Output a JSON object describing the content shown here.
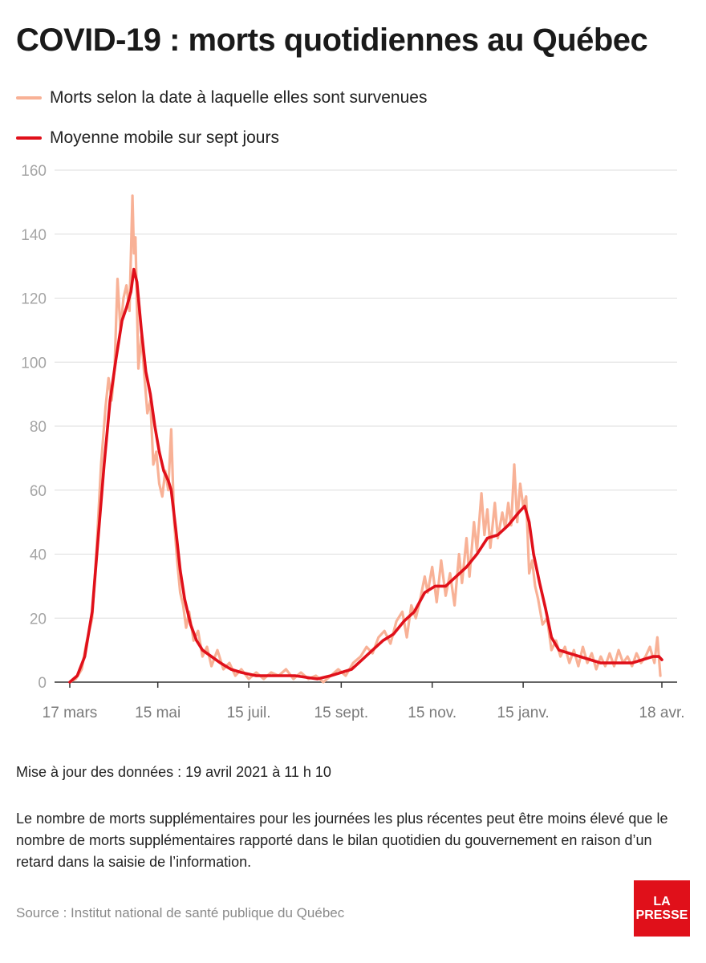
{
  "title": "COVID-19 : morts quotidiennes au Québec",
  "colors": {
    "raw": "#f8b196",
    "avg": "#e0101a",
    "grid": "#dddddd",
    "tick_text": "#a5a5a5"
  },
  "legend": [
    {
      "label": "Morts selon la date à laquelle elles sont survenues"
    },
    {
      "label": "Moyenne mobile sur sept jours"
    }
  ],
  "chart_data": {
    "type": "line",
    "title": "COVID-19 : morts quotidiennes au Québec",
    "ylim": [
      0,
      160
    ],
    "yticks": [
      0,
      20,
      40,
      60,
      80,
      100,
      120,
      140,
      160
    ],
    "xlim": [
      "2020-03-17",
      "2021-04-18"
    ],
    "x_ticks": [
      {
        "date": "2020-03-17",
        "label": "17 mars"
      },
      {
        "date": "2020-05-15",
        "label": "15 mai"
      },
      {
        "date": "2020-07-15",
        "label": "15 juil."
      },
      {
        "date": "2020-09-15",
        "label": "15 sept."
      },
      {
        "date": "2020-11-15",
        "label": "15 nov."
      },
      {
        "date": "2021-01-15",
        "label": "15 janv."
      },
      {
        "date": "2021-04-18",
        "label": "18 avr."
      }
    ],
    "grid": true,
    "series": [
      {
        "name": "Morts selon la date à laquelle elles sont survenues",
        "points": [
          [
            "2020-03-17",
            0
          ],
          [
            "2020-03-21",
            1
          ],
          [
            "2020-03-25",
            4
          ],
          [
            "2020-03-28",
            12
          ],
          [
            "2020-04-01",
            20
          ],
          [
            "2020-04-04",
            42
          ],
          [
            "2020-04-07",
            68
          ],
          [
            "2020-04-10",
            86
          ],
          [
            "2020-04-12",
            95
          ],
          [
            "2020-04-14",
            88
          ],
          [
            "2020-04-16",
            98
          ],
          [
            "2020-04-18",
            126
          ],
          [
            "2020-04-20",
            110
          ],
          [
            "2020-04-22",
            120
          ],
          [
            "2020-04-24",
            124
          ],
          [
            "2020-04-26",
            116
          ],
          [
            "2020-04-28",
            152
          ],
          [
            "2020-04-29",
            134
          ],
          [
            "2020-04-30",
            139
          ],
          [
            "2020-05-02",
            98
          ],
          [
            "2020-05-04",
            108
          ],
          [
            "2020-05-06",
            96
          ],
          [
            "2020-05-08",
            84
          ],
          [
            "2020-05-10",
            88
          ],
          [
            "2020-05-12",
            68
          ],
          [
            "2020-05-14",
            72
          ],
          [
            "2020-05-16",
            62
          ],
          [
            "2020-05-18",
            58
          ],
          [
            "2020-05-20",
            66
          ],
          [
            "2020-05-22",
            60
          ],
          [
            "2020-05-24",
            79
          ],
          [
            "2020-05-26",
            50
          ],
          [
            "2020-05-28",
            38
          ],
          [
            "2020-05-30",
            28
          ],
          [
            "2020-06-01",
            24
          ],
          [
            "2020-06-03",
            17
          ],
          [
            "2020-06-05",
            22
          ],
          [
            "2020-06-08",
            13
          ],
          [
            "2020-06-11",
            16
          ],
          [
            "2020-06-14",
            8
          ],
          [
            "2020-06-17",
            11
          ],
          [
            "2020-06-20",
            5
          ],
          [
            "2020-06-24",
            10
          ],
          [
            "2020-06-28",
            4
          ],
          [
            "2020-07-02",
            6
          ],
          [
            "2020-07-06",
            2
          ],
          [
            "2020-07-10",
            4
          ],
          [
            "2020-07-15",
            1
          ],
          [
            "2020-07-20",
            3
          ],
          [
            "2020-07-25",
            1
          ],
          [
            "2020-07-30",
            3
          ],
          [
            "2020-08-04",
            2
          ],
          [
            "2020-08-09",
            4
          ],
          [
            "2020-08-14",
            1
          ],
          [
            "2020-08-19",
            3
          ],
          [
            "2020-08-24",
            1
          ],
          [
            "2020-08-29",
            2
          ],
          [
            "2020-09-03",
            0
          ],
          [
            "2020-09-08",
            2
          ],
          [
            "2020-09-13",
            4
          ],
          [
            "2020-09-18",
            2
          ],
          [
            "2020-09-23",
            6
          ],
          [
            "2020-09-28",
            8
          ],
          [
            "2020-10-02",
            11
          ],
          [
            "2020-10-06",
            9
          ],
          [
            "2020-10-10",
            14
          ],
          [
            "2020-10-14",
            16
          ],
          [
            "2020-10-18",
            12
          ],
          [
            "2020-10-22",
            19
          ],
          [
            "2020-10-26",
            22
          ],
          [
            "2020-10-29",
            14
          ],
          [
            "2020-11-01",
            24
          ],
          [
            "2020-11-04",
            20
          ],
          [
            "2020-11-07",
            26
          ],
          [
            "2020-11-10",
            33
          ],
          [
            "2020-11-12",
            28
          ],
          [
            "2020-11-15",
            36
          ],
          [
            "2020-11-18",
            25
          ],
          [
            "2020-11-21",
            38
          ],
          [
            "2020-11-24",
            27
          ],
          [
            "2020-11-27",
            34
          ],
          [
            "2020-11-30",
            24
          ],
          [
            "2020-12-03",
            40
          ],
          [
            "2020-12-05",
            31
          ],
          [
            "2020-12-08",
            45
          ],
          [
            "2020-12-10",
            33
          ],
          [
            "2020-12-13",
            50
          ],
          [
            "2020-12-15",
            41
          ],
          [
            "2020-12-18",
            59
          ],
          [
            "2020-12-20",
            46
          ],
          [
            "2020-12-22",
            54
          ],
          [
            "2020-12-24",
            42
          ],
          [
            "2020-12-27",
            56
          ],
          [
            "2020-12-29",
            45
          ],
          [
            "2021-01-01",
            53
          ],
          [
            "2021-01-03",
            48
          ],
          [
            "2021-01-05",
            56
          ],
          [
            "2021-01-07",
            49
          ],
          [
            "2021-01-09",
            68
          ],
          [
            "2021-01-11",
            50
          ],
          [
            "2021-01-13",
            62
          ],
          [
            "2021-01-15",
            55
          ],
          [
            "2021-01-17",
            58
          ],
          [
            "2021-01-19",
            34
          ],
          [
            "2021-01-21",
            38
          ],
          [
            "2021-01-23",
            30
          ],
          [
            "2021-01-25",
            26
          ],
          [
            "2021-01-28",
            18
          ],
          [
            "2021-01-31",
            20
          ],
          [
            "2021-02-03",
            10
          ],
          [
            "2021-02-06",
            13
          ],
          [
            "2021-02-09",
            8
          ],
          [
            "2021-02-12",
            11
          ],
          [
            "2021-02-15",
            6
          ],
          [
            "2021-02-18",
            10
          ],
          [
            "2021-02-21",
            5
          ],
          [
            "2021-02-24",
            11
          ],
          [
            "2021-02-27",
            6
          ],
          [
            "2021-03-02",
            9
          ],
          [
            "2021-03-05",
            4
          ],
          [
            "2021-03-08",
            8
          ],
          [
            "2021-03-11",
            5
          ],
          [
            "2021-03-14",
            9
          ],
          [
            "2021-03-17",
            5
          ],
          [
            "2021-03-20",
            10
          ],
          [
            "2021-03-23",
            6
          ],
          [
            "2021-03-26",
            8
          ],
          [
            "2021-03-29",
            5
          ],
          [
            "2021-04-01",
            9
          ],
          [
            "2021-04-04",
            6
          ],
          [
            "2021-04-07",
            8
          ],
          [
            "2021-04-10",
            11
          ],
          [
            "2021-04-13",
            6
          ],
          [
            "2021-04-15",
            14
          ],
          [
            "2021-04-17",
            2
          ]
        ]
      },
      {
        "name": "Moyenne mobile sur sept jours",
        "points": [
          [
            "2020-03-17",
            0
          ],
          [
            "2020-03-22",
            2
          ],
          [
            "2020-03-27",
            8
          ],
          [
            "2020-04-01",
            22
          ],
          [
            "2020-04-05",
            45
          ],
          [
            "2020-04-09",
            68
          ],
          [
            "2020-04-13",
            88
          ],
          [
            "2020-04-17",
            101
          ],
          [
            "2020-04-21",
            113
          ],
          [
            "2020-04-24",
            117
          ],
          [
            "2020-04-27",
            122
          ],
          [
            "2020-04-29",
            129
          ],
          [
            "2020-05-01",
            125
          ],
          [
            "2020-05-04",
            110
          ],
          [
            "2020-05-07",
            97
          ],
          [
            "2020-05-10",
            90
          ],
          [
            "2020-05-13",
            80
          ],
          [
            "2020-05-16",
            72
          ],
          [
            "2020-05-19",
            66
          ],
          [
            "2020-05-22",
            63
          ],
          [
            "2020-05-24",
            60
          ],
          [
            "2020-05-27",
            48
          ],
          [
            "2020-05-30",
            35
          ],
          [
            "2020-06-02",
            26
          ],
          [
            "2020-06-06",
            18
          ],
          [
            "2020-06-10",
            13
          ],
          [
            "2020-06-14",
            10
          ],
          [
            "2020-06-20",
            8
          ],
          [
            "2020-06-26",
            6
          ],
          [
            "2020-07-03",
            4
          ],
          [
            "2020-07-10",
            3
          ],
          [
            "2020-07-20",
            2
          ],
          [
            "2020-08-01",
            2
          ],
          [
            "2020-08-15",
            2
          ],
          [
            "2020-08-30",
            1
          ],
          [
            "2020-09-08",
            2
          ],
          [
            "2020-09-15",
            3
          ],
          [
            "2020-09-22",
            4
          ],
          [
            "2020-09-29",
            7
          ],
          [
            "2020-10-06",
            10
          ],
          [
            "2020-10-13",
            13
          ],
          [
            "2020-10-20",
            15
          ],
          [
            "2020-10-27",
            19
          ],
          [
            "2020-11-03",
            22
          ],
          [
            "2020-11-10",
            28
          ],
          [
            "2020-11-17",
            30
          ],
          [
            "2020-11-24",
            30
          ],
          [
            "2020-12-01",
            33
          ],
          [
            "2020-12-08",
            36
          ],
          [
            "2020-12-15",
            40
          ],
          [
            "2020-12-22",
            45
          ],
          [
            "2020-12-29",
            46
          ],
          [
            "2021-01-05",
            49
          ],
          [
            "2021-01-12",
            53
          ],
          [
            "2021-01-16",
            55
          ],
          [
            "2021-01-19",
            50
          ],
          [
            "2021-01-22",
            40
          ],
          [
            "2021-01-26",
            31
          ],
          [
            "2021-01-30",
            23
          ],
          [
            "2021-02-03",
            14
          ],
          [
            "2021-02-08",
            10
          ],
          [
            "2021-02-15",
            9
          ],
          [
            "2021-02-22",
            8
          ],
          [
            "2021-03-01",
            7
          ],
          [
            "2021-03-08",
            6
          ],
          [
            "2021-03-15",
            6
          ],
          [
            "2021-03-22",
            6
          ],
          [
            "2021-03-29",
            6
          ],
          [
            "2021-04-05",
            7
          ],
          [
            "2021-04-12",
            8
          ],
          [
            "2021-04-16",
            8
          ],
          [
            "2021-04-18",
            7
          ]
        ]
      }
    ]
  },
  "footer": {
    "updated": "Mise à jour des données : 19 avril 2021 à 11 h 10",
    "note": "Le nombre de morts supplémentaires pour les journées les plus récentes peut être moins élevé que le nombre de morts supplémentaires rapporté dans le bilan quotidien du gouvernement en raison d’un retard dans la saisie de l’information.",
    "source": "Source : Institut national de santé publique du Québec"
  },
  "logo": {
    "line1": "LA",
    "line2": "PRESSE"
  }
}
